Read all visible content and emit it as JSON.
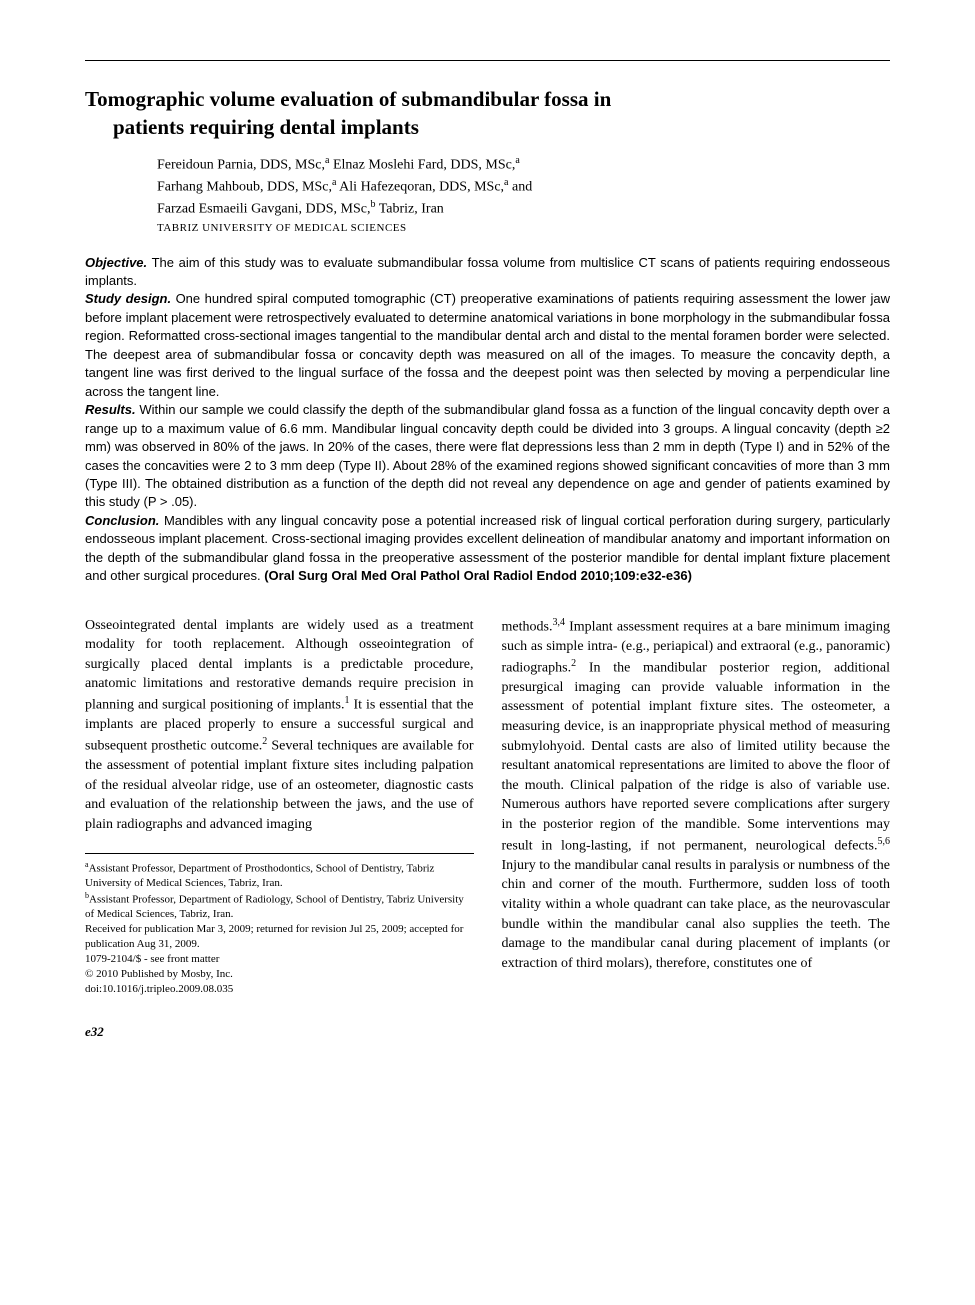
{
  "title_line1": "Tomographic volume evaluation of submandibular fossa in",
  "title_line2": "patients requiring dental implants",
  "authors_line1": "Fereidoun Parnia, DDS, MSc,",
  "authors_sup1": "a",
  "authors_line1b": " Elnaz Moslehi Fard, DDS, MSc,",
  "authors_sup1b": "a",
  "authors_line2": "Farhang Mahboub, DDS, MSc,",
  "authors_sup2": "a",
  "authors_line2b": " Ali Hafezeqoran, DDS, MSc,",
  "authors_sup2b": "a",
  "authors_line2c": " and",
  "authors_line3": "Farzad Esmaeili Gavgani, DDS, MSc,",
  "authors_sup3": "b",
  "authors_line3b": " Tabriz, Iran",
  "affiliation": "TABRIZ UNIVERSITY OF MEDICAL SCIENCES",
  "abstract": {
    "objective_head": "Objective.",
    "objective_body": " The aim of this study was to evaluate submandibular fossa volume from multislice CT scans of patients requiring endosseous implants.",
    "design_head": "Study design.",
    "design_body": " One hundred spiral computed tomographic (CT) preoperative examinations of patients requiring assessment the lower jaw before implant placement were retrospectively evaluated to determine anatomical variations in bone morphology in the submandibular fossa region. Reformatted cross-sectional images tangential to the mandibular dental arch and distal to the mental foramen border were selected. The deepest area of submandibular fossa or concavity depth was measured on all of the images. To measure the concavity depth, a tangent line was first derived to the lingual surface of the fossa and the deepest point was then selected by moving a perpendicular line across the tangent line.",
    "results_head": "Results.",
    "results_body": " Within our sample we could classify the depth of the submandibular gland fossa as a function of the lingual concavity depth over a range up to a maximum value of 6.6 mm. Mandibular lingual concavity depth could be divided into 3 groups. A lingual concavity (depth ≥2 mm) was observed in 80% of the jaws. In 20% of the cases, there were flat depressions less than 2 mm in depth (Type I) and in 52% of the cases the concavities were 2 to 3 mm deep (Type II). About 28% of the examined regions showed significant concavities of more than 3 mm (Type III). The obtained distribution as a function of the depth did not reveal any dependence on age and gender of patients examined by this study (P > .05).",
    "conclusion_head": "Conclusion.",
    "conclusion_body": " Mandibles with any lingual concavity pose a potential increased risk of lingual cortical perforation during surgery, particularly endosseous implant placement. Cross-sectional imaging provides excellent delineation of mandibular anatomy and important information on the depth of the submandibular gland fossa in the preoperative assessment of the posterior mandible for dental implant fixture placement and other surgical procedures. ",
    "citation": "(Oral Surg Oral Med Oral Pathol Oral Radiol Endod 2010;109:e32-e36)"
  },
  "body": {
    "col1_a": "Osseointegrated dental implants are widely used as a treatment modality for tooth replacement. Although osseointegration of surgically placed dental implants is a predictable procedure, anatomic limitations and restorative demands require precision in planning and surgical positioning of implants.",
    "col1_sup1": "1",
    "col1_b": " It is essential that the implants are placed properly to ensure a successful surgical and subsequent prosthetic outcome.",
    "col1_sup2": "2",
    "col1_c": " Several techniques are available for the assessment of potential implant fixture sites including palpation of the residual alveolar ridge, use of an osteometer, diagnostic casts and evaluation of the relationship between the jaws, and the use of plain radiographs and advanced imaging",
    "col2_a": "methods.",
    "col2_sup34": "3,4",
    "col2_b": " Implant assessment requires at a bare minimum imaging such as simple intra- (e.g., periapical) and extraoral (e.g., panoramic) radiographs.",
    "col2_sup2": "2",
    "col2_c": " In the mandibular posterior region, additional presurgical imaging can provide valuable information in the assessment of potential implant fixture sites. The osteometer, a measuring device, is an inappropriate physical method of measuring submylohyoid. Dental casts are also of limited utility because the resultant anatomical representations are limited to above the floor of the mouth. Clinical palpation of the ridge is also of variable use. Numerous authors have reported severe complications after surgery in the posterior region of the mandible. Some interventions may result in long-lasting, if not permanent, neurological defects.",
    "col2_sup56": "5,6",
    "col2_d": " Injury to the mandibular canal results in paralysis or numbness of the chin and corner of the mouth. Furthermore, sudden loss of tooth vitality within a whole quadrant can take place, as the neurovascular bundle within the mandibular canal also supplies the teeth. The damage to the mandibular canal during placement of implants (or extraction of third molars), therefore, constitutes one of"
  },
  "footnotes": {
    "a_sup": "a",
    "a": "Assistant Professor, Department of Prosthodontics, School of Dentistry, Tabriz University of Medical Sciences, Tabriz, Iran.",
    "b_sup": "b",
    "b": "Assistant Professor, Department of Radiology, School of Dentistry, Tabriz University of Medical Sciences, Tabriz, Iran.",
    "received": "Received for publication Mar 3, 2009; returned for revision Jul 25, 2009; accepted for publication Aug 31, 2009.",
    "issn": "1079-2104/$ - see front matter",
    "copyright": "© 2010 Published by Mosby, Inc.",
    "doi": "doi:10.1016/j.tripleo.2009.08.035"
  },
  "page_number": "e32"
}
